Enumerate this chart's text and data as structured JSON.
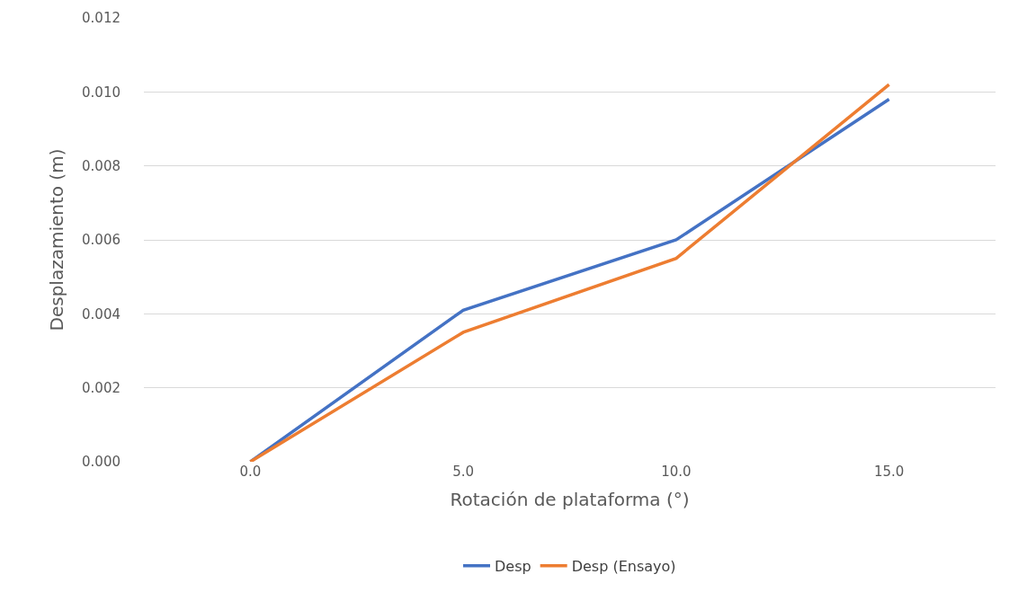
{
  "chart_data": {
    "type": "line",
    "xlabel": "Rotación de plataforma (°)",
    "ylabel": "Desplazamiento (m)",
    "categories": [
      "0.0",
      "5.0",
      "10.0",
      "15.0"
    ],
    "series": [
      {
        "name": "Desp",
        "color": "#4472c4",
        "values": [
          0,
          0.0041,
          0.006,
          0.0098
        ]
      },
      {
        "name": "Desp (Ensayo)",
        "color": "#ed7d31",
        "values": [
          0,
          0.0035,
          0.0055,
          0.0102
        ]
      }
    ],
    "ylim": [
      0,
      0.012
    ],
    "yticks": [
      {
        "value": 0,
        "label": "0.000"
      },
      {
        "value": 0.002,
        "label": "0.002"
      },
      {
        "value": 0.004,
        "label": "0.004"
      },
      {
        "value": 0.006,
        "label": "0.006"
      },
      {
        "value": 0.008,
        "label": "0.008"
      },
      {
        "value": 0.01,
        "label": "0.010"
      },
      {
        "value": 0.012,
        "label": "0.012"
      }
    ],
    "grid": "y",
    "legend": "bottom",
    "marker": "none",
    "line_style": "solid"
  }
}
